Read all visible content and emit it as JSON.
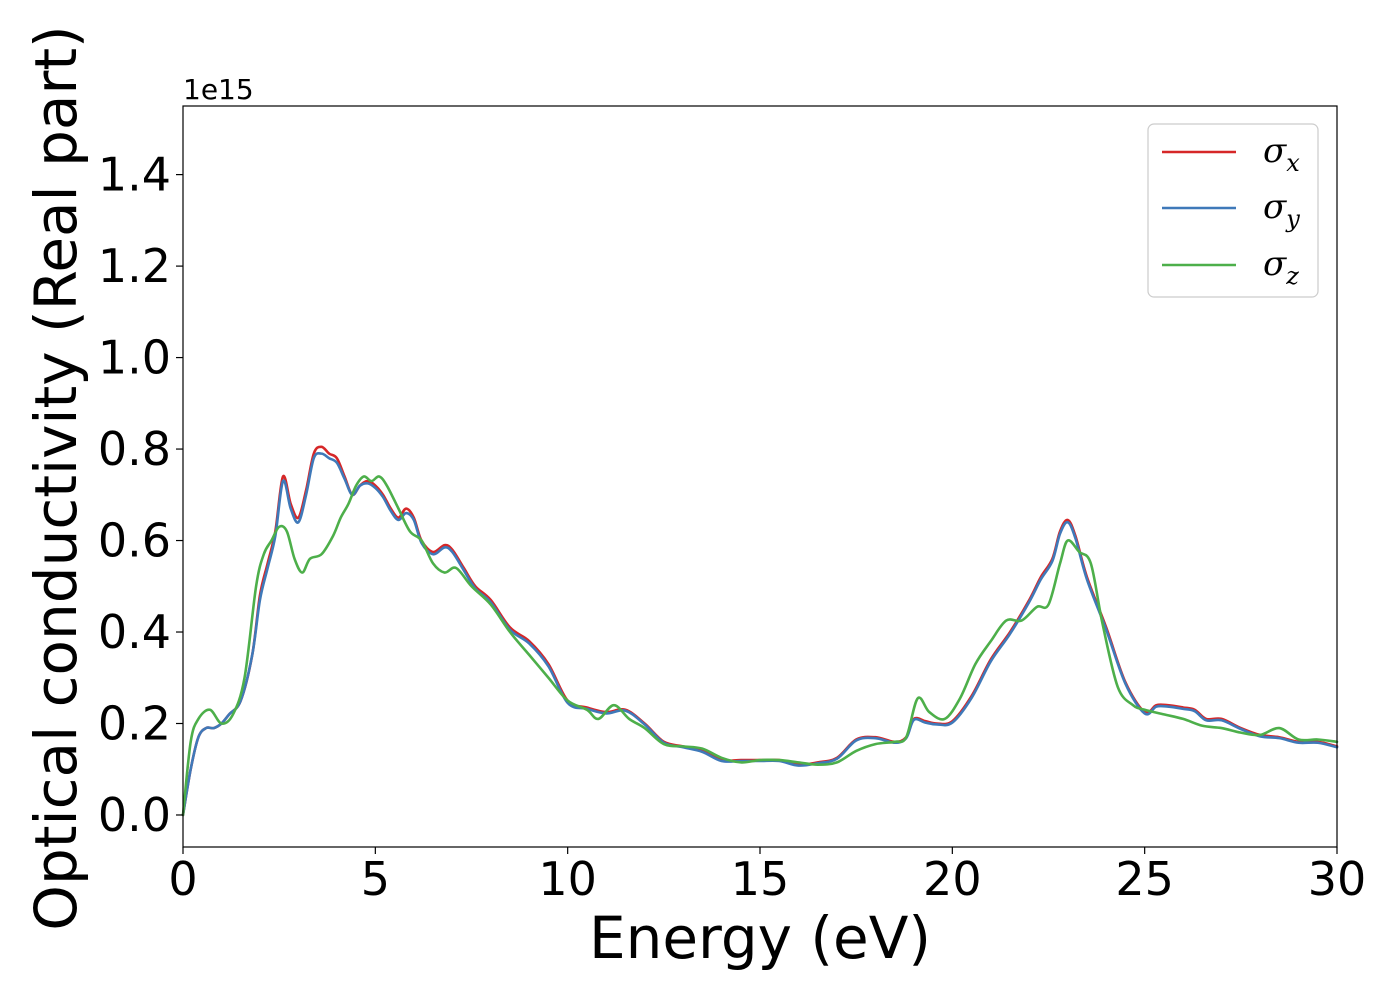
{
  "chart_data": {
    "type": "line",
    "xlabel": "Energy (eV)",
    "ylabel": "Optical conductivity (Real part)",
    "y_offset_text": "1e15",
    "xlim": [
      0,
      30
    ],
    "ylim": [
      -0.07,
      1.55
    ],
    "x_ticks": [
      0,
      5,
      10,
      15,
      20,
      25,
      30
    ],
    "x_tick_labels": [
      "0",
      "5",
      "10",
      "15",
      "20",
      "25",
      "30"
    ],
    "y_ticks": [
      0.0,
      0.2,
      0.4,
      0.6,
      0.8,
      1.0,
      1.2,
      1.4
    ],
    "y_tick_labels": [
      "0.0",
      "0.2",
      "0.4",
      "0.6",
      "0.8",
      "1.0",
      "1.2",
      "1.4"
    ],
    "grid": false,
    "legend_position": "top-right",
    "series": [
      {
        "name": "σx",
        "legend_symbol": "σ",
        "legend_subscript": "x",
        "color": "#d62728",
        "x": [
          0,
          0.2,
          0.4,
          0.6,
          0.8,
          1.0,
          1.2,
          1.5,
          1.8,
          2.0,
          2.2,
          2.4,
          2.6,
          2.8,
          3.0,
          3.2,
          3.4,
          3.6,
          3.8,
          4.0,
          4.2,
          4.4,
          4.6,
          4.8,
          5.0,
          5.2,
          5.4,
          5.6,
          5.8,
          6.0,
          6.2,
          6.5,
          6.8,
          7.0,
          7.3,
          7.6,
          8.0,
          8.5,
          9.0,
          9.5,
          10.0,
          10.5,
          11.0,
          11.5,
          12.0,
          12.5,
          13.0,
          13.5,
          14.0,
          14.5,
          15.0,
          15.5,
          16.0,
          16.5,
          17.0,
          17.5,
          18.0,
          18.5,
          18.8,
          19.0,
          19.3,
          19.6,
          20.0,
          20.5,
          21.0,
          21.5,
          22.0,
          22.3,
          22.6,
          22.8,
          23.0,
          23.2,
          23.5,
          24.0,
          24.5,
          25.0,
          25.3,
          25.6,
          26.0,
          26.3,
          26.6,
          27.0,
          27.5,
          28.0,
          28.5,
          29.0,
          29.5,
          30.0
        ],
        "values": [
          0.0,
          0.1,
          0.17,
          0.19,
          0.19,
          0.2,
          0.22,
          0.25,
          0.35,
          0.48,
          0.55,
          0.62,
          0.74,
          0.68,
          0.65,
          0.71,
          0.79,
          0.805,
          0.79,
          0.78,
          0.74,
          0.7,
          0.72,
          0.73,
          0.72,
          0.7,
          0.67,
          0.65,
          0.67,
          0.65,
          0.6,
          0.575,
          0.59,
          0.58,
          0.54,
          0.5,
          0.47,
          0.41,
          0.38,
          0.33,
          0.25,
          0.235,
          0.225,
          0.23,
          0.2,
          0.16,
          0.15,
          0.14,
          0.12,
          0.12,
          0.12,
          0.12,
          0.11,
          0.115,
          0.125,
          0.165,
          0.17,
          0.16,
          0.17,
          0.21,
          0.205,
          0.2,
          0.205,
          0.26,
          0.34,
          0.4,
          0.47,
          0.52,
          0.56,
          0.62,
          0.645,
          0.61,
          0.52,
          0.41,
          0.29,
          0.225,
          0.24,
          0.24,
          0.235,
          0.23,
          0.21,
          0.21,
          0.19,
          0.175,
          0.17,
          0.16,
          0.16,
          0.15
        ]
      },
      {
        "name": "σy",
        "legend_symbol": "σ",
        "legend_subscript": "y",
        "color": "#3f79b9",
        "x": [
          0,
          0.2,
          0.4,
          0.6,
          0.8,
          1.0,
          1.2,
          1.5,
          1.8,
          2.0,
          2.2,
          2.4,
          2.6,
          2.8,
          3.0,
          3.2,
          3.4,
          3.6,
          3.8,
          4.0,
          4.2,
          4.4,
          4.6,
          4.8,
          5.0,
          5.2,
          5.4,
          5.6,
          5.8,
          6.0,
          6.2,
          6.5,
          6.8,
          7.0,
          7.3,
          7.6,
          8.0,
          8.5,
          9.0,
          9.5,
          10.0,
          10.5,
          11.0,
          11.5,
          12.0,
          12.5,
          13.0,
          13.5,
          14.0,
          14.5,
          15.0,
          15.5,
          16.0,
          16.5,
          17.0,
          17.5,
          18.0,
          18.5,
          18.8,
          19.0,
          19.3,
          19.6,
          20.0,
          20.5,
          21.0,
          21.5,
          22.0,
          22.3,
          22.6,
          22.8,
          23.0,
          23.2,
          23.5,
          24.0,
          24.5,
          25.0,
          25.3,
          25.6,
          26.0,
          26.3,
          26.6,
          27.0,
          27.5,
          28.0,
          28.5,
          29.0,
          29.5,
          30.0
        ],
        "values": [
          0.0,
          0.1,
          0.17,
          0.19,
          0.19,
          0.2,
          0.22,
          0.25,
          0.35,
          0.47,
          0.54,
          0.61,
          0.73,
          0.67,
          0.64,
          0.7,
          0.78,
          0.79,
          0.78,
          0.77,
          0.735,
          0.7,
          0.72,
          0.725,
          0.715,
          0.695,
          0.665,
          0.645,
          0.66,
          0.645,
          0.595,
          0.57,
          0.585,
          0.575,
          0.535,
          0.495,
          0.465,
          0.405,
          0.375,
          0.325,
          0.245,
          0.232,
          0.222,
          0.228,
          0.198,
          0.158,
          0.148,
          0.138,
          0.118,
          0.118,
          0.118,
          0.118,
          0.108,
          0.113,
          0.123,
          0.163,
          0.168,
          0.158,
          0.168,
          0.208,
          0.202,
          0.198,
          0.202,
          0.256,
          0.336,
          0.396,
          0.466,
          0.515,
          0.555,
          0.615,
          0.64,
          0.605,
          0.515,
          0.405,
          0.287,
          0.222,
          0.237,
          0.237,
          0.232,
          0.227,
          0.207,
          0.207,
          0.188,
          0.172,
          0.168,
          0.158,
          0.158,
          0.148
        ]
      },
      {
        "name": "σz",
        "legend_symbol": "σ",
        "legend_subscript": "z",
        "color": "#4daf4a",
        "x": [
          0,
          0.2,
          0.4,
          0.7,
          1.0,
          1.3,
          1.6,
          1.9,
          2.1,
          2.3,
          2.5,
          2.7,
          2.9,
          3.1,
          3.3,
          3.6,
          3.9,
          4.1,
          4.3,
          4.5,
          4.7,
          4.9,
          5.1,
          5.3,
          5.6,
          5.9,
          6.2,
          6.5,
          6.8,
          7.1,
          7.5,
          8.0,
          8.5,
          9.0,
          9.5,
          10.0,
          10.5,
          10.8,
          11.2,
          11.6,
          12.0,
          12.5,
          13.0,
          13.5,
          14.0,
          14.5,
          15.0,
          15.5,
          16.0,
          16.5,
          17.0,
          17.5,
          18.0,
          18.5,
          18.8,
          19.1,
          19.4,
          19.8,
          20.2,
          20.6,
          21.0,
          21.4,
          21.8,
          22.2,
          22.5,
          22.8,
          23.0,
          23.3,
          23.6,
          23.9,
          24.3,
          24.7,
          25.0,
          25.5,
          26.0,
          26.5,
          27.0,
          27.5,
          28.0,
          28.5,
          29.0,
          29.5,
          30.0
        ],
        "values": [
          0.0,
          0.16,
          0.21,
          0.23,
          0.2,
          0.22,
          0.3,
          0.5,
          0.57,
          0.6,
          0.63,
          0.62,
          0.56,
          0.53,
          0.56,
          0.57,
          0.61,
          0.65,
          0.68,
          0.72,
          0.74,
          0.73,
          0.74,
          0.72,
          0.67,
          0.62,
          0.6,
          0.55,
          0.53,
          0.54,
          0.5,
          0.46,
          0.4,
          0.35,
          0.3,
          0.25,
          0.23,
          0.21,
          0.24,
          0.21,
          0.19,
          0.155,
          0.15,
          0.145,
          0.125,
          0.115,
          0.12,
          0.12,
          0.115,
          0.11,
          0.115,
          0.14,
          0.155,
          0.16,
          0.17,
          0.255,
          0.225,
          0.21,
          0.255,
          0.33,
          0.38,
          0.425,
          0.425,
          0.455,
          0.46,
          0.55,
          0.6,
          0.575,
          0.55,
          0.42,
          0.28,
          0.24,
          0.23,
          0.22,
          0.21,
          0.195,
          0.19,
          0.18,
          0.175,
          0.19,
          0.165,
          0.165,
          0.16
        ]
      }
    ]
  }
}
